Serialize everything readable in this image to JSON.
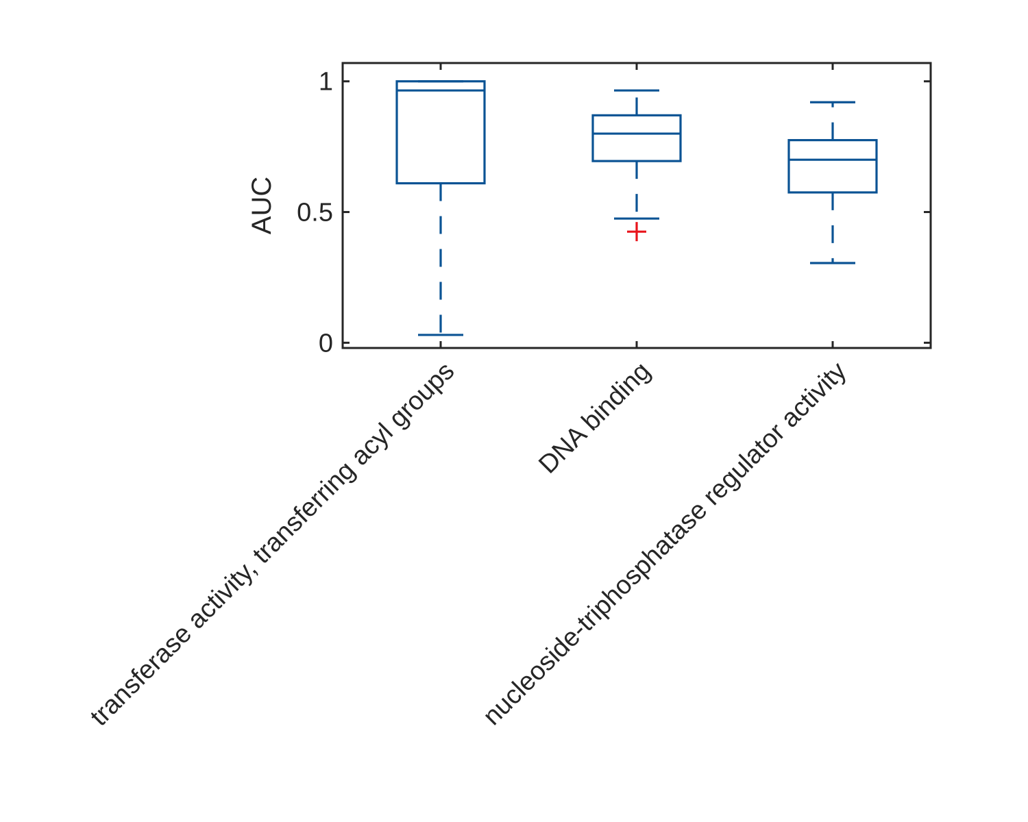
{
  "chart_data": {
    "type": "boxplot",
    "title": "",
    "xlabel": "",
    "ylabel": "AUC",
    "ylim": [
      -0.02,
      1.07
    ],
    "yticks": [
      0,
      0.5,
      1
    ],
    "ytick_labels": [
      "0",
      "0.5",
      "1"
    ],
    "grid": false,
    "categories": [
      "transferase activity, transferring acyl groups",
      "DNA binding",
      "nucleoside-triphosphatase regulator activity"
    ],
    "boxes": [
      {
        "whisker_low": 0.03,
        "q1": 0.61,
        "median": 0.965,
        "q3": 1.0,
        "whisker_high": 1.0,
        "outliers": []
      },
      {
        "whisker_low": 0.475,
        "q1": 0.695,
        "median": 0.8,
        "q3": 0.87,
        "whisker_high": 0.965,
        "outliers": [
          0.425
        ]
      },
      {
        "whisker_low": 0.305,
        "q1": 0.575,
        "median": 0.7,
        "q3": 0.775,
        "whisker_high": 0.92,
        "outliers": []
      }
    ],
    "colors": {
      "box": "#0b5394",
      "outlier": "#e8141b",
      "axis": "#262626"
    }
  }
}
